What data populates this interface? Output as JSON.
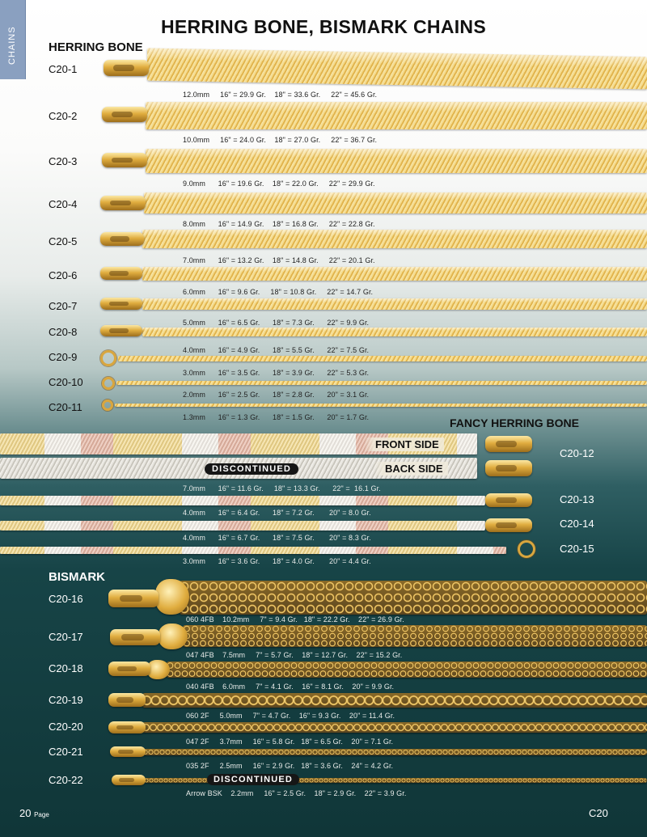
{
  "side_tab": "CHAINS",
  "title": "HERRING BONE, BISMARK CHAINS",
  "sections": {
    "herring_bone": "HERRING BONE",
    "fancy": "FANCY HERRING BONE",
    "bismark": "BISMARK"
  },
  "herring": [
    {
      "code": "C20-1",
      "spec": "12.0mm     16\" = 29.9 Gr.    18\" = 33.6 Gr.     22\" = 45.6 Gr."
    },
    {
      "code": "C20-2",
      "spec": "10.0mm     16\" = 24.0 Gr.    18\" = 27.0 Gr.     22\" = 36.7 Gr."
    },
    {
      "code": "C20-3",
      "spec": "9.0mm      16\" = 19.6 Gr.    18\" = 22.0 Gr.     22\" = 29.9 Gr."
    },
    {
      "code": "C20-4",
      "spec": "8.0mm      16\" = 14.9 Gr.    18\" = 16.8 Gr.     22\" = 22.8 Gr."
    },
    {
      "code": "C20-5",
      "spec": "7.0mm      16\" = 13.2 Gr.    18\" = 14.8 Gr.     22\" = 20.1 Gr."
    },
    {
      "code": "C20-6",
      "spec": "6.0mm      16\" = 9.6 Gr.     18\" = 10.8 Gr.     22\" = 14.7 Gr."
    },
    {
      "code": "C20-7",
      "spec": "5.0mm      16\" = 6.5 Gr.      18\" = 7.3 Gr.      22\" = 9.9 Gr."
    },
    {
      "code": "C20-8",
      "spec": "4.0mm      16\" = 4.9 Gr.      18\" = 5.5 Gr.      22\" = 7.5 Gr."
    },
    {
      "code": "C20-9",
      "spec": "3.0mm      16\" = 3.5 Gr.      18\" = 3.9 Gr.      22\" = 5.3 Gr."
    },
    {
      "code": "C20-10",
      "spec": "2.0mm      16\" = 2.5 Gr.      18\" = 2.8 Gr.      20\" = 3.1 Gr."
    },
    {
      "code": "C20-11",
      "spec": "1.3mm      16\" = 1.3 Gr.      18\" = 1.5 Gr.      20\" = 1.7 Gr."
    }
  ],
  "fancy": {
    "front_side": "FRONT SIDE",
    "back_side": "BACK SIDE",
    "discontinued": "DISCONTINUED",
    "items": [
      {
        "code": "C20-12",
        "spec": "7.0mm      16\" = 11.6 Gr.     18\" = 13.3 Gr.      22\" =  16.1 Gr."
      },
      {
        "code": "C20-13",
        "spec": "4.0mm      16\" = 6.4 Gr.      18\" = 7.2 Gr.       20\" = 8.0 Gr."
      },
      {
        "code": "C20-14",
        "spec": "4.0mm      16\" = 6.7 Gr.      18\" = 7.5 Gr.       20\" = 8.3 Gr."
      },
      {
        "code": "C20-15",
        "spec": "3.0mm      16\" = 3.6 Gr.      18\" = 4.0 Gr.       20\" = 4.4 Gr."
      }
    ]
  },
  "bismark": {
    "discontinued": "DISCONTINUED",
    "items": [
      {
        "code": "C20-16",
        "spec": "060 4FB    10.2mm     7\" = 9.4 Gr.   18\" = 22.2 Gr.    22\" = 26.9 Gr."
      },
      {
        "code": "C20-17",
        "spec": "047 4FB    7.5mm     7\" = 5.7 Gr.    18\" = 12.7 Gr.    22\" = 15.2 Gr."
      },
      {
        "code": "C20-18",
        "spec": "040 4FB    6.0mm     7\" = 4.1 Gr.    16\" = 8.1 Gr.    20\" = 9.9 Gr."
      },
      {
        "code": "C20-19",
        "spec": "060 2F     5.0mm     7\" = 4.7 Gr.    16\" = 9.3 Gr.    20\" = 11.4 Gr."
      },
      {
        "code": "C20-20",
        "spec": "047 2F     3.7mm     16\" = 5.8 Gr.   18\" = 6.5 Gr.    20\" = 7.1 Gr."
      },
      {
        "code": "C20-21",
        "spec": "035 2F     2.5mm     16\" = 2.9 Gr.   18\" = 3.6 Gr.    24\" = 4.2 Gr."
      },
      {
        "code": "C20-22",
        "spec": "Arrow BSK    2.2mm     16\" = 2.5 Gr.    18\" = 2.9 Gr.    22\" = 3.9 Gr."
      }
    ]
  },
  "footer": {
    "page_number": "20",
    "page_word": "Page",
    "section_code": "C20"
  }
}
